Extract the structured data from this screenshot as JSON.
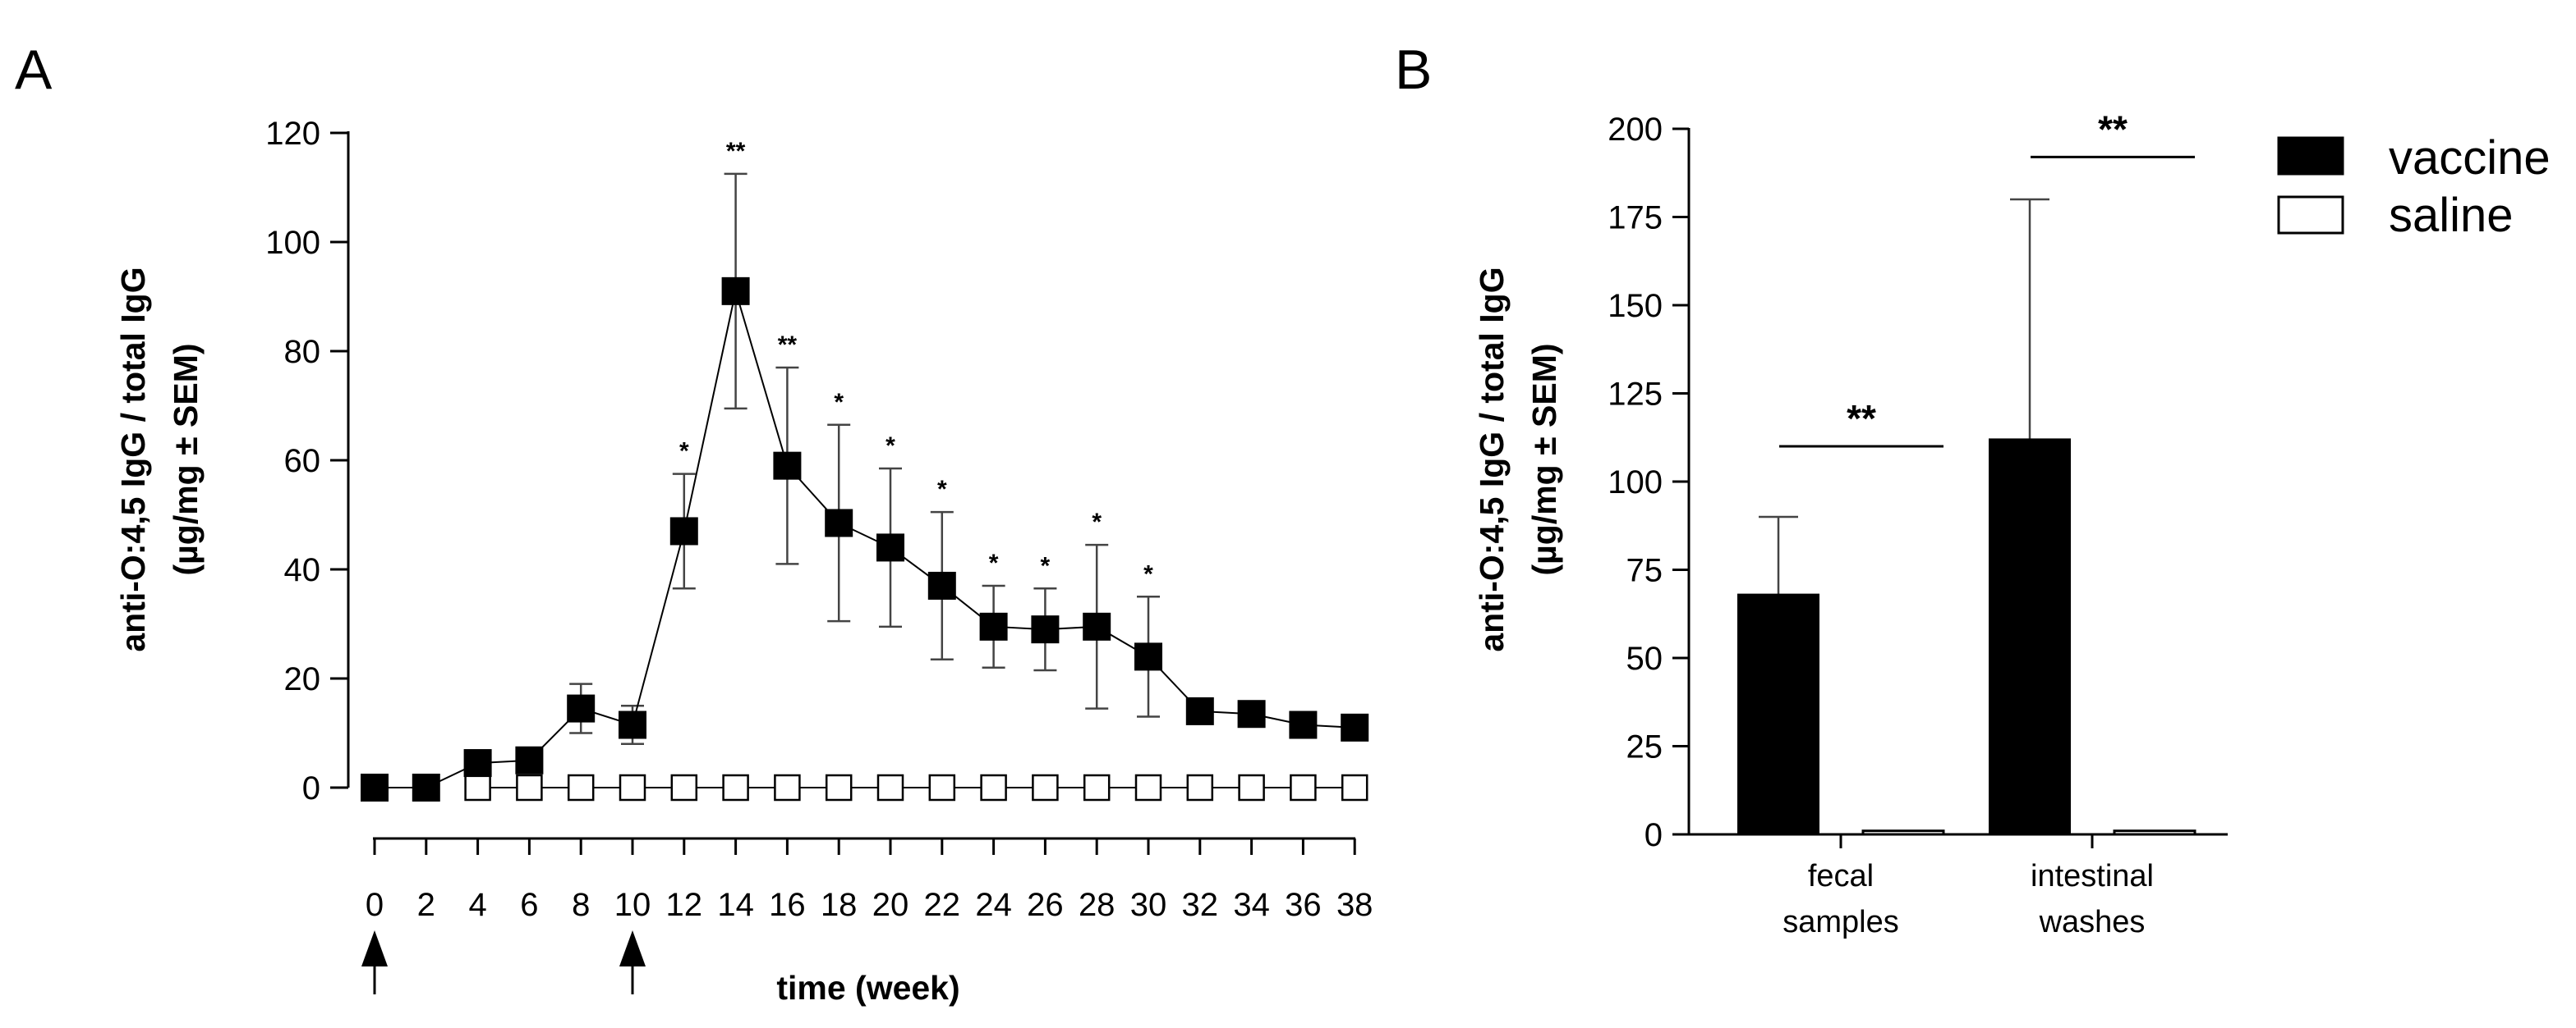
{
  "colors": {
    "ink": "#000000",
    "paper": "#ffffff",
    "errorbar": "#444444"
  },
  "chart_data": [
    {
      "panel": "A",
      "type": "line",
      "title": "",
      "xlabel": "time (week)",
      "ylabel": "anti-O:4,5 IgG / total IgG",
      "ylabel2": "(µg/mg ± SEM)",
      "ylim": [
        0,
        120
      ],
      "yticks": [
        0,
        20,
        40,
        60,
        80,
        100,
        120
      ],
      "x": [
        0,
        2,
        4,
        6,
        8,
        10,
        12,
        14,
        16,
        18,
        20,
        22,
        24,
        26,
        28,
        30,
        32,
        34,
        36,
        38
      ],
      "xtick_labels": [
        "0",
        "2",
        "4",
        "6",
        "8",
        "10",
        "12",
        "14",
        "16",
        "18",
        "20",
        "22",
        "24",
        "26",
        "28",
        "30",
        "32",
        "34",
        "36",
        "38"
      ],
      "immunization_arrows_at": [
        0,
        10
      ],
      "series": [
        {
          "name": "vaccine",
          "marker": "filled-square",
          "values": [
            0,
            0,
            4.5,
            5,
            14.5,
            11.5,
            47,
            91,
            59,
            48.5,
            44,
            37,
            29.5,
            29,
            29.5,
            24,
            14,
            13.5,
            11.5,
            11
          ],
          "error": [
            0,
            0,
            0,
            0,
            4.5,
            3.5,
            10.5,
            21.5,
            18,
            18,
            14.5,
            13.5,
            7.5,
            7.5,
            15,
            11,
            0,
            0,
            0,
            0
          ]
        },
        {
          "name": "saline",
          "marker": "open-square",
          "x": [
            4,
            6,
            8,
            10,
            12,
            14,
            16,
            18,
            20,
            22,
            24,
            26,
            28,
            30,
            32,
            34,
            36,
            38
          ],
          "values": [
            0,
            0,
            0,
            0,
            0,
            0,
            0,
            0,
            0,
            0,
            0,
            0,
            0,
            0,
            0,
            0,
            0,
            0
          ]
        }
      ],
      "significance": [
        {
          "x": 12,
          "label": "*"
        },
        {
          "x": 14,
          "label": "**"
        },
        {
          "x": 16,
          "label": "**"
        },
        {
          "x": 18,
          "label": "*"
        },
        {
          "x": 20,
          "label": "*"
        },
        {
          "x": 22,
          "label": "*"
        },
        {
          "x": 24,
          "label": "*"
        },
        {
          "x": 26,
          "label": "*"
        },
        {
          "x": 28,
          "label": "*"
        },
        {
          "x": 30,
          "label": "*"
        }
      ]
    },
    {
      "panel": "B",
      "type": "bar",
      "title": "",
      "xlabel": "",
      "ylabel": "anti-O:4,5 IgG / total IgG",
      "ylabel2": "(µg/mg ± SEM)",
      "ylim": [
        0,
        200
      ],
      "yticks": [
        0,
        25,
        50,
        75,
        100,
        125,
        150,
        175,
        200
      ],
      "categories": [
        {
          "line1": "fecal",
          "line2": "samples"
        },
        {
          "line1": "intestinal",
          "line2": "washes"
        }
      ],
      "series": [
        {
          "name": "vaccine",
          "fill": "filled",
          "values": [
            68,
            112
          ],
          "error": [
            22,
            68
          ]
        },
        {
          "name": "saline",
          "fill": "open",
          "values": [
            1,
            1
          ],
          "error": [
            0,
            0
          ]
        }
      ],
      "significance": [
        {
          "category": 0,
          "label": "**",
          "line_y": 110
        },
        {
          "category": 1,
          "label": "**",
          "line_y": 192
        }
      ]
    }
  ],
  "legend": [
    {
      "label": "vaccine",
      "style": "filled"
    },
    {
      "label": "saline",
      "style": "open"
    }
  ],
  "panels": {
    "a_label": "A",
    "b_label": "B"
  }
}
